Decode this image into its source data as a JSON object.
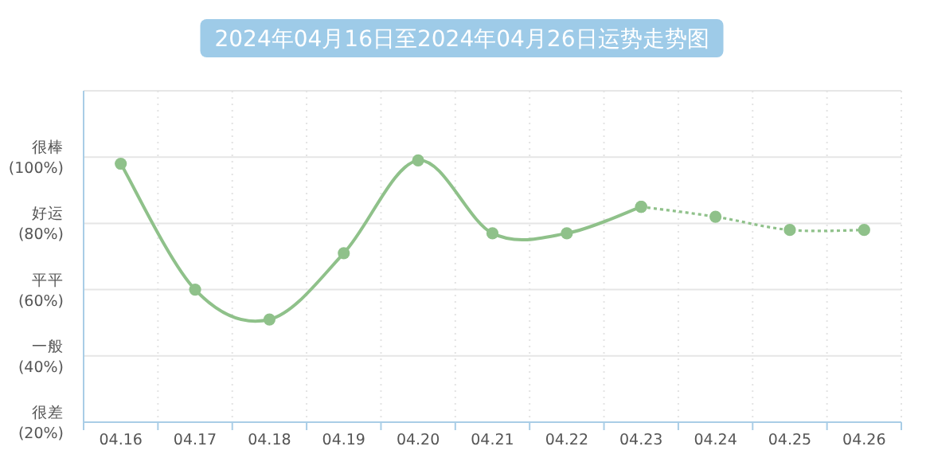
{
  "chart_data": {
    "type": "line",
    "title": "2024年04月16日至2024年04月26日运势走势图",
    "categories": [
      "04.16",
      "04.17",
      "04.18",
      "04.19",
      "04.20",
      "04.21",
      "04.22",
      "04.23",
      "04.24",
      "04.25",
      "04.26"
    ],
    "series": [
      {
        "color": "#8fc18a",
        "line_style": "solid",
        "values": [
          98,
          60,
          51,
          71,
          99,
          77,
          77,
          85,
          null,
          null,
          null
        ]
      },
      {
        "color": "#8fc18a",
        "line_style": "dotted",
        "values": [
          null,
          null,
          null,
          null,
          null,
          null,
          null,
          85,
          82,
          78,
          78
        ]
      }
    ],
    "ylim": [
      20,
      120
    ],
    "yticks": [
      {
        "value": 20,
        "label": "很差\n(20%)"
      },
      {
        "value": 40,
        "label": "一般\n(40%)"
      },
      {
        "value": 60,
        "label": "平平\n(60%)"
      },
      {
        "value": 80,
        "label": "好运\n(80%)"
      },
      {
        "value": 100,
        "label": "很棒\n(100%)"
      }
    ],
    "grid": true,
    "marker": "circle"
  }
}
